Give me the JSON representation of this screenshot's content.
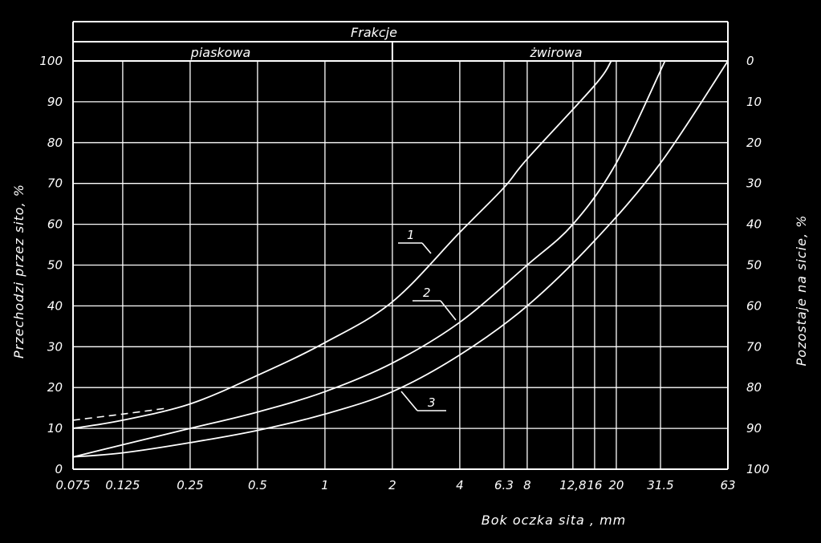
{
  "chart_data": {
    "type": "line",
    "header": {
      "title": "Frakcje",
      "fractions": [
        "piaskowa",
        "żwirowa"
      ]
    },
    "xlabel": "Bok oczka sita , mm",
    "ylabel_left": "Przechodzi przez sito, %",
    "ylabel_right": "Pozostaje na sicie, %",
    "x_scale": "log",
    "xlim": [
      0.075,
      63
    ],
    "ylim": [
      0,
      100
    ],
    "x_ticks": [
      0.075,
      0.125,
      0.25,
      0.5,
      1,
      2,
      4,
      6.3,
      8,
      12.8,
      16,
      20,
      31.5,
      63
    ],
    "x_tick_labels": [
      "0.075",
      "0.125",
      "0.25",
      "0.5",
      "1",
      "2",
      "4",
      "6.3",
      "8",
      "12,8",
      "16",
      "20",
      "31.5",
      "63"
    ],
    "y_ticks_left": [
      "0",
      "10",
      "20",
      "30",
      "40",
      "50",
      "60",
      "70",
      "80",
      "90",
      "100"
    ],
    "y_ticks_right": [
      "100",
      "90",
      "80",
      "70",
      "60",
      "50",
      "40",
      "30",
      "20",
      "10",
      "0"
    ],
    "fraction_boundary_x": 2,
    "grid": true,
    "colors": {
      "background": "#000000",
      "lines": "#ffffff"
    },
    "series": [
      {
        "name": "1",
        "x": [
          0.075,
          0.125,
          0.25,
          0.5,
          1,
          2,
          4,
          6.3,
          8,
          16,
          19
        ],
        "y": [
          10,
          12,
          16,
          23,
          31,
          41,
          58,
          69,
          76,
          94,
          100
        ]
      },
      {
        "name": "2",
        "x": [
          0.075,
          0.125,
          0.25,
          0.5,
          1,
          2,
          4,
          8,
          12.8,
          20,
          33
        ],
        "y": [
          3,
          6,
          10,
          14,
          19,
          26,
          36,
          50,
          60,
          75,
          100
        ]
      },
      {
        "name": "3",
        "x": [
          0.075,
          0.125,
          0.25,
          0.5,
          1,
          2,
          4,
          8,
          16,
          31.5,
          63
        ],
        "y": [
          3,
          4,
          6.5,
          9.5,
          13.5,
          19,
          28,
          40,
          56,
          75,
          100
        ]
      }
    ],
    "dashed_segment": {
      "x": [
        0.075,
        0.125,
        0.2
      ],
      "y": [
        12,
        13.5,
        15
      ]
    }
  }
}
